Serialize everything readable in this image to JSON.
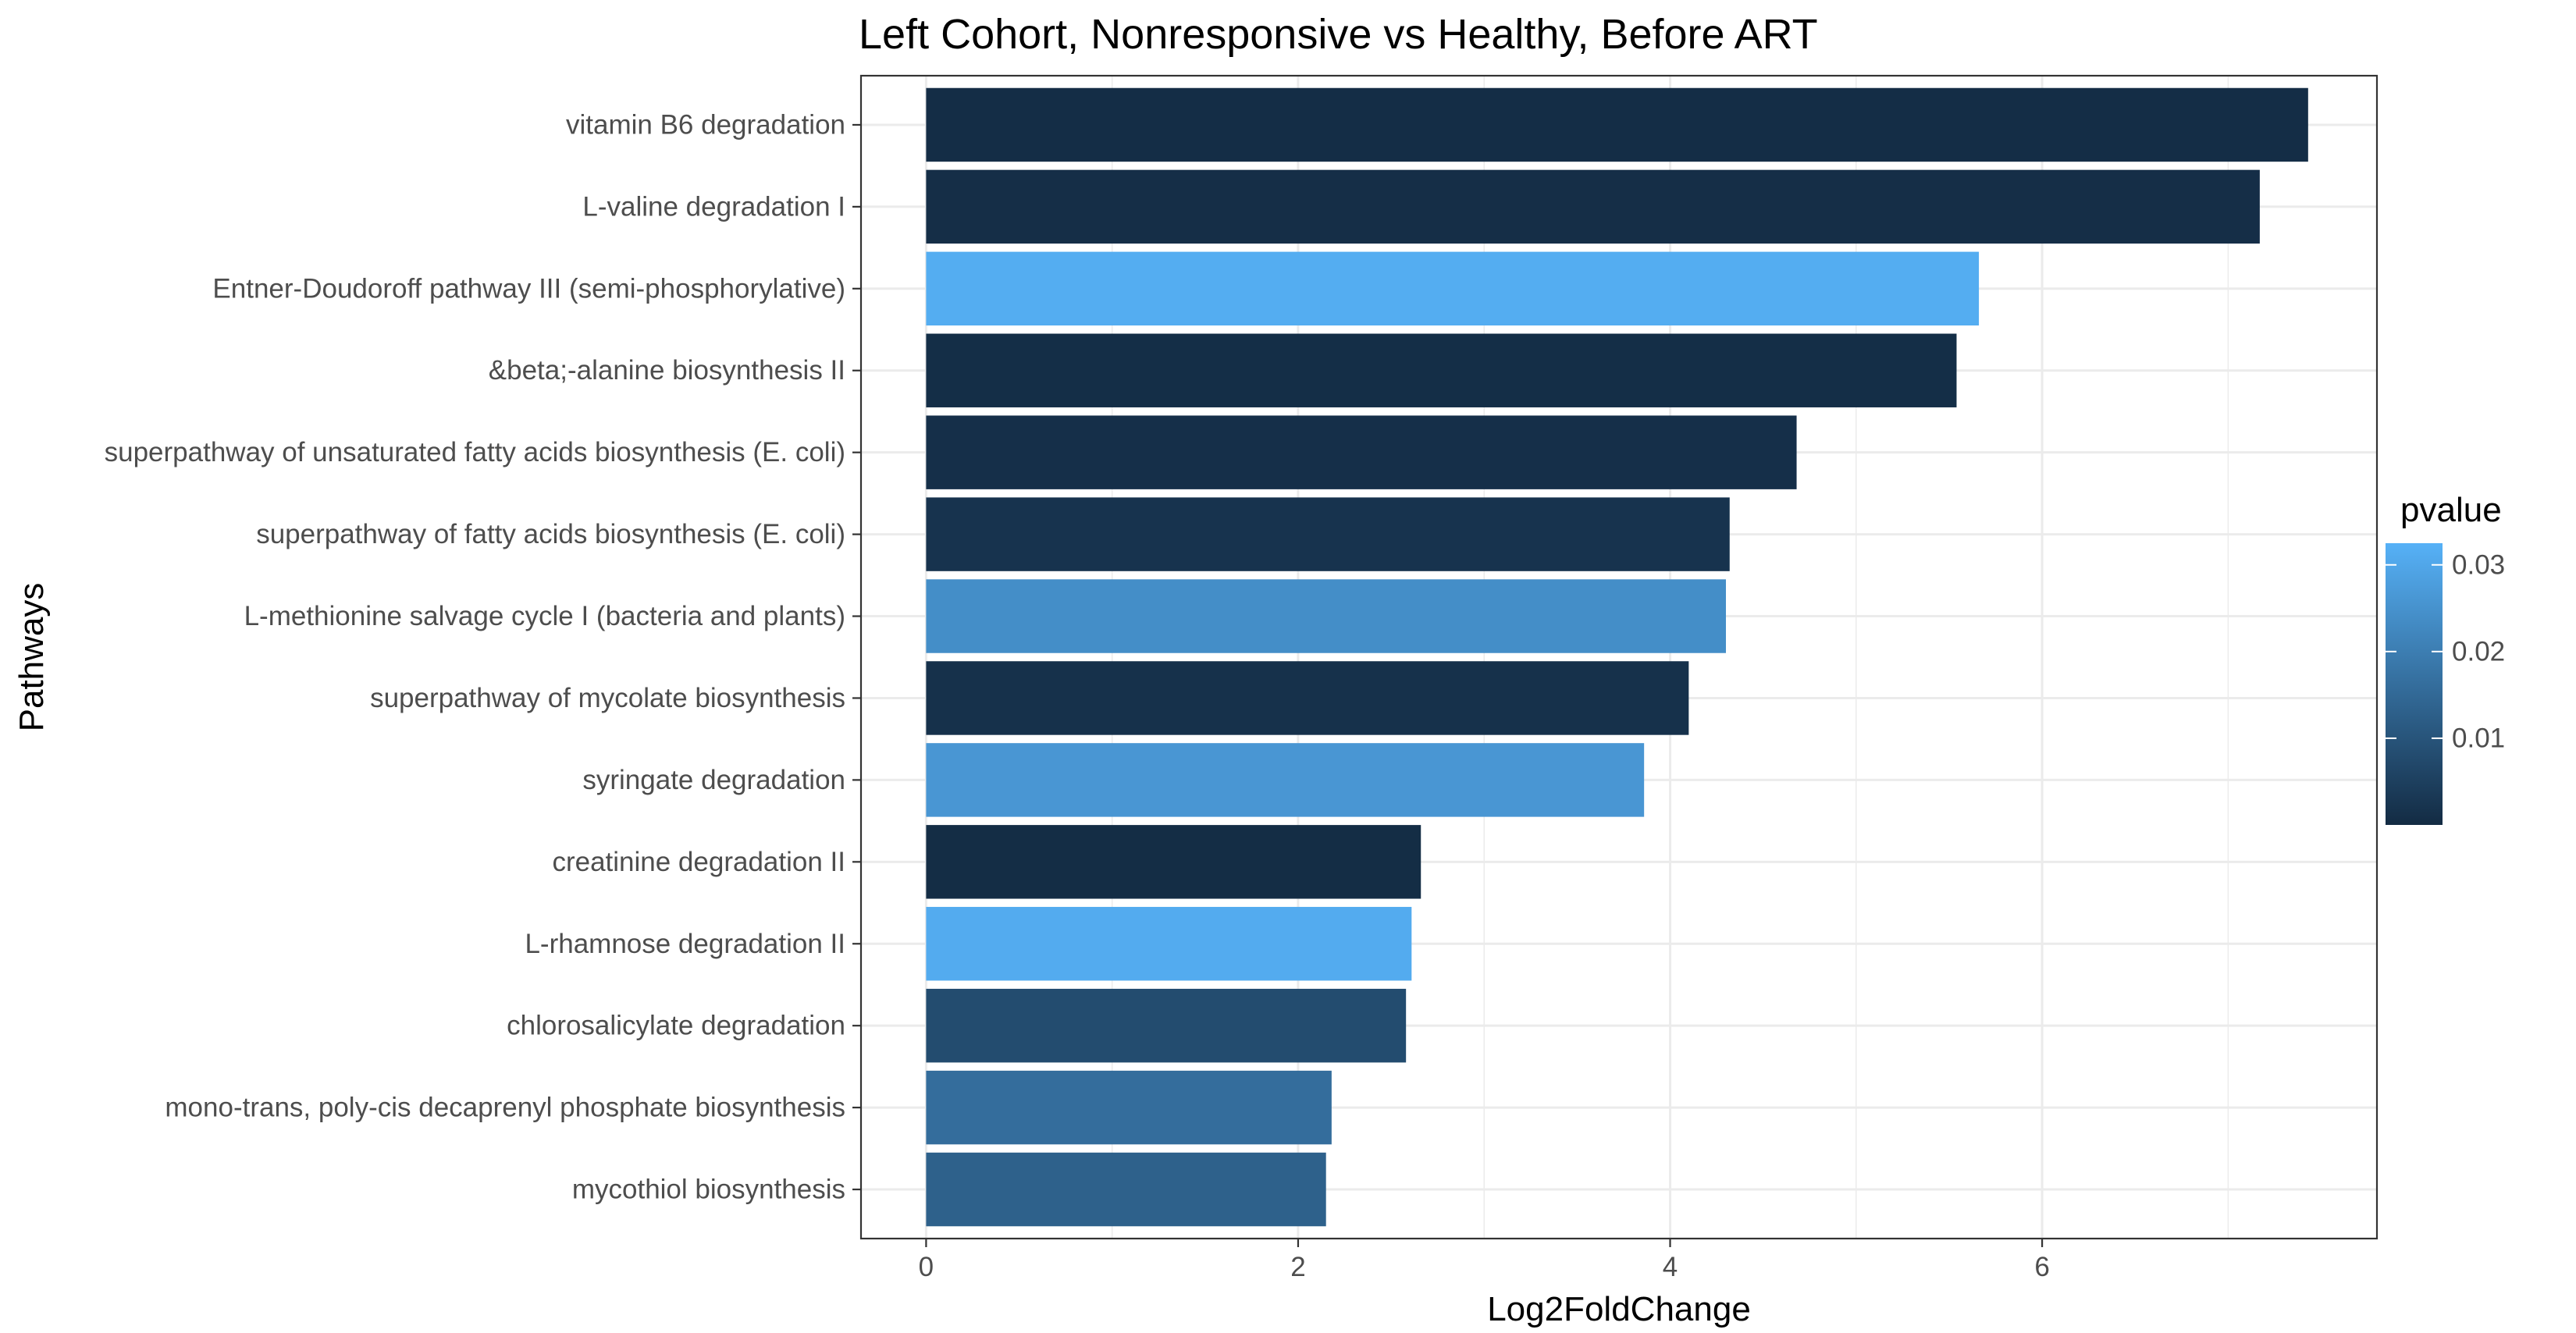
{
  "chart_data": {
    "type": "bar",
    "orientation": "horizontal",
    "title": "Left Cohort, Nonresponsive vs Healthy, Before ART",
    "xlabel": "Log2FoldChange",
    "ylabel": "Pathways",
    "xlim": [
      -0.35,
      7.8
    ],
    "xticks": [
      0,
      2,
      4,
      6
    ],
    "grid": true,
    "categories": [
      "vitamin B6 degradation",
      "L-valine degradation I",
      "Entner-Doudoroff pathway III (semi-phosphorylative)",
      "&beta;-alanine biosynthesis II",
      "superpathway of unsaturated fatty acids biosynthesis (E. coli)",
      "superpathway of fatty acids biosynthesis (E. coli)",
      "L-methionine salvage cycle I (bacteria and plants)",
      "superpathway of mycolate biosynthesis",
      "syringate degradation",
      "creatinine degradation II",
      "L-rhamnose degradation II",
      "chlorosalicylate degradation",
      "mono-trans, poly-cis decaprenyl phosphate biosynthesis",
      "mycothiol biosynthesis"
    ],
    "values": [
      7.43,
      7.17,
      5.66,
      5.54,
      4.68,
      4.32,
      4.3,
      4.1,
      3.86,
      2.66,
      2.61,
      2.58,
      2.18,
      2.15
    ],
    "pvalue": [
      0.0005,
      0.0008,
      0.0315,
      0.0007,
      0.001,
      0.002,
      0.024,
      0.0015,
      0.026,
      0.0004,
      0.031,
      0.008,
      0.016,
      0.013
    ],
    "legend": {
      "title": "pvalue",
      "position": "right",
      "ticks": [
        {
          "value": 0.01,
          "label": "0.01"
        },
        {
          "value": 0.02,
          "label": "0.02"
        },
        {
          "value": 0.03,
          "label": "0.03"
        }
      ],
      "range": [
        0.0,
        0.0325
      ],
      "color_low": "#132B43",
      "color_high": "#56B1F7"
    }
  }
}
